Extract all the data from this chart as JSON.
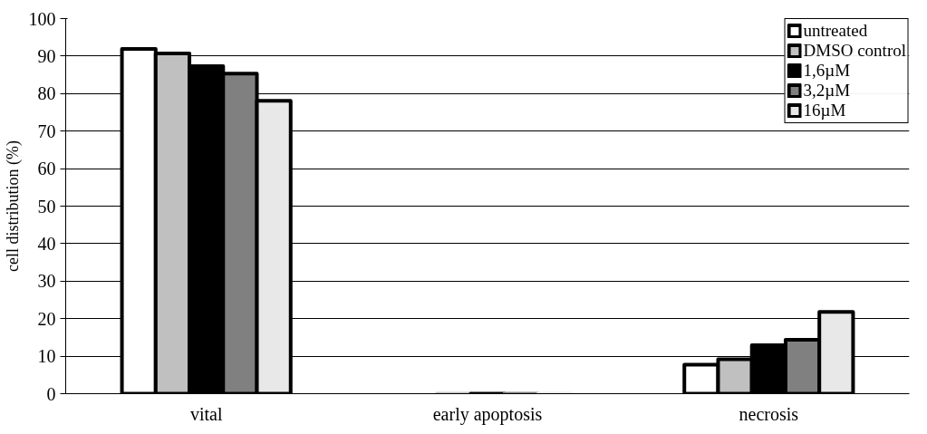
{
  "chart_data": {
    "type": "bar",
    "ylabel": "cell distribution (%)",
    "categories": [
      "vital",
      "early apoptosis",
      "necrosis"
    ],
    "series": [
      {
        "name": "untreated",
        "color": "#ffffff",
        "values": [
          91.9,
          0,
          7.7
        ]
      },
      {
        "name": "DMSO control",
        "color": "#c0c0c0",
        "values": [
          90.7,
          0,
          9.2
        ]
      },
      {
        "name": "1,6µM",
        "color": "#000000",
        "values": [
          87.3,
          0,
          12.9
        ]
      },
      {
        "name": "3,2µM",
        "color": "#808080",
        "values": [
          85.3,
          0,
          14.4
        ]
      },
      {
        "name": "16µM",
        "color": "#e8e8e8",
        "values": [
          78.1,
          0,
          21.8
        ]
      }
    ],
    "ylim": [
      0,
      100
    ],
    "yticks": [
      0,
      10,
      20,
      30,
      40,
      50,
      60,
      70,
      80,
      90,
      100
    ],
    "grid": "y",
    "legend": "top right"
  }
}
